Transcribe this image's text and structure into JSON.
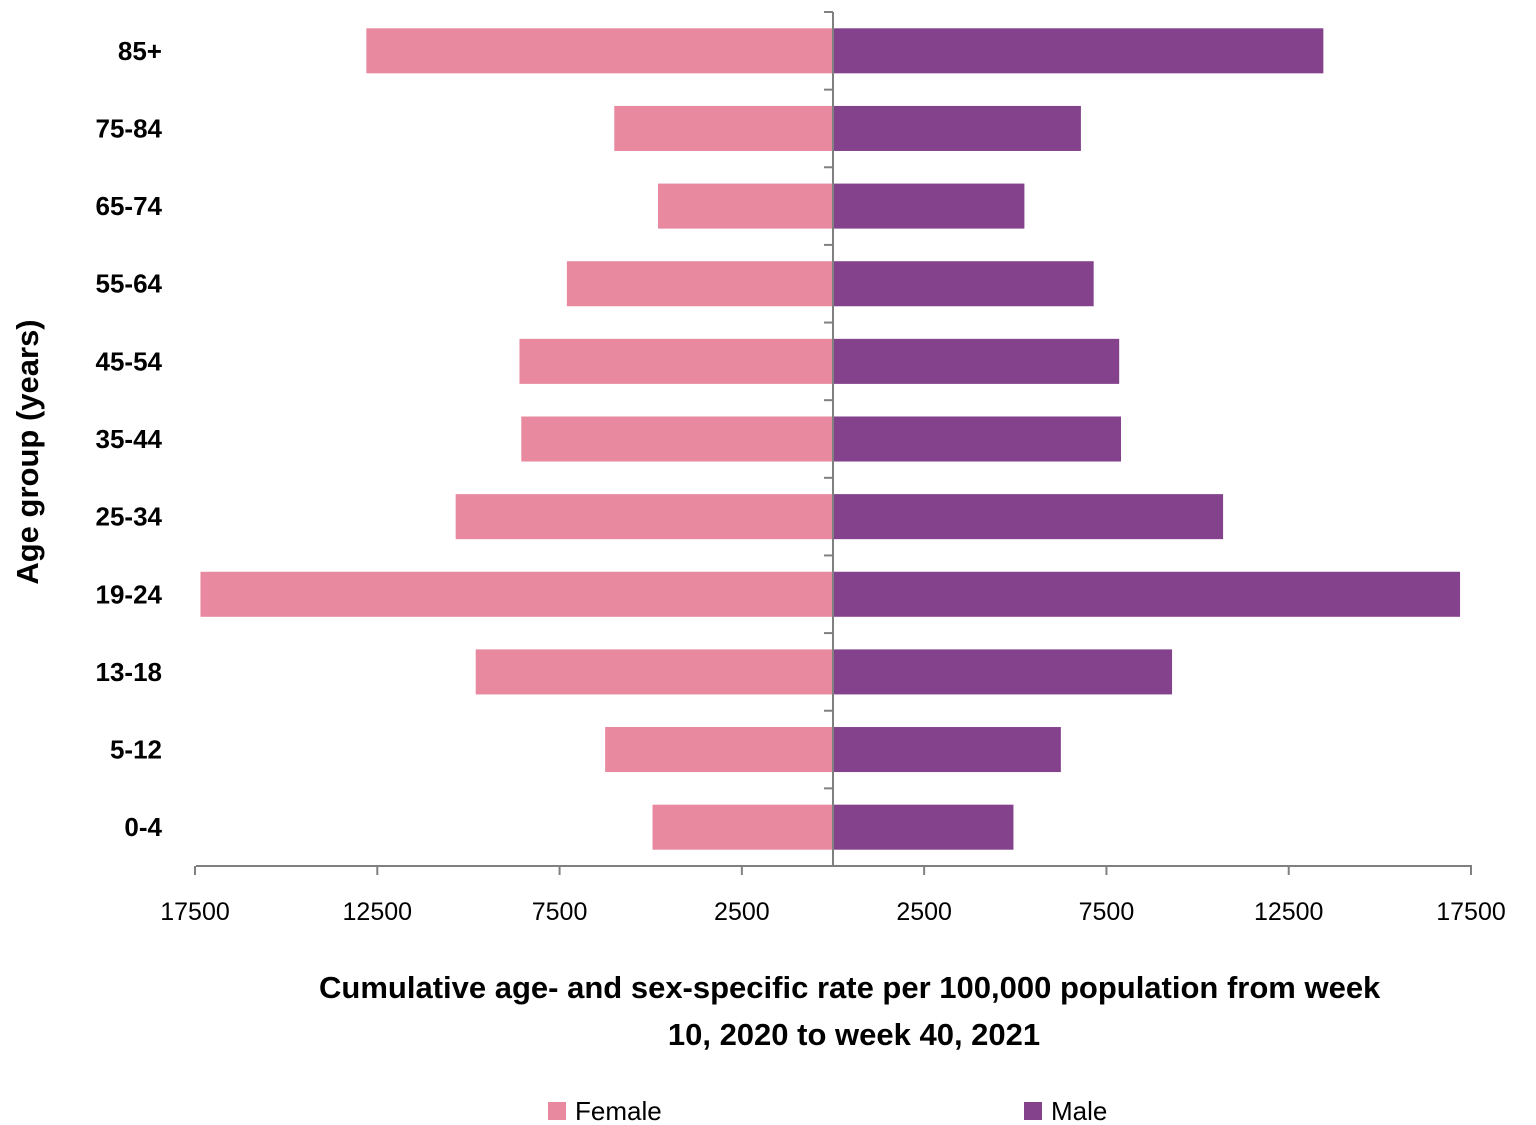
{
  "chart_data": {
    "type": "bar",
    "orientation": "horizontal-population-pyramid",
    "categories": [
      "0-4",
      "5-12",
      "13-18",
      "19-24",
      "25-34",
      "35-44",
      "45-54",
      "55-64",
      "65-74",
      "75-84",
      "85+"
    ],
    "series": [
      {
        "name": "Female",
        "side": "left",
        "color": "#e8899f",
        "values": [
          4950,
          6250,
          9800,
          17350,
          10350,
          8550,
          8600,
          7300,
          4800,
          6000,
          12800
        ]
      },
      {
        "name": "Male",
        "side": "right",
        "color": "#84428d",
        "values": [
          4950,
          6250,
          9300,
          17200,
          10700,
          7900,
          7850,
          7150,
          5250,
          6800,
          13450
        ]
      }
    ],
    "xlim": [
      -17500,
      17500
    ],
    "x_tick_labels": [
      "17500",
      "12500",
      "7500",
      "2500",
      "2500",
      "7500",
      "12500",
      "17500"
    ],
    "xlabel": "Cumulative age- and sex-specific rate per 100,000 population from week 10, 2020 to week 40, 2021",
    "xlabel_lines": [
      "Cumulative age- and sex-specific rate per 100,000 population from week",
      "10, 2020 to week 40, 2021"
    ],
    "ylabel": "Age group (years)",
    "grid": false,
    "legend_position": "bottom",
    "axis_color": "#808080"
  }
}
